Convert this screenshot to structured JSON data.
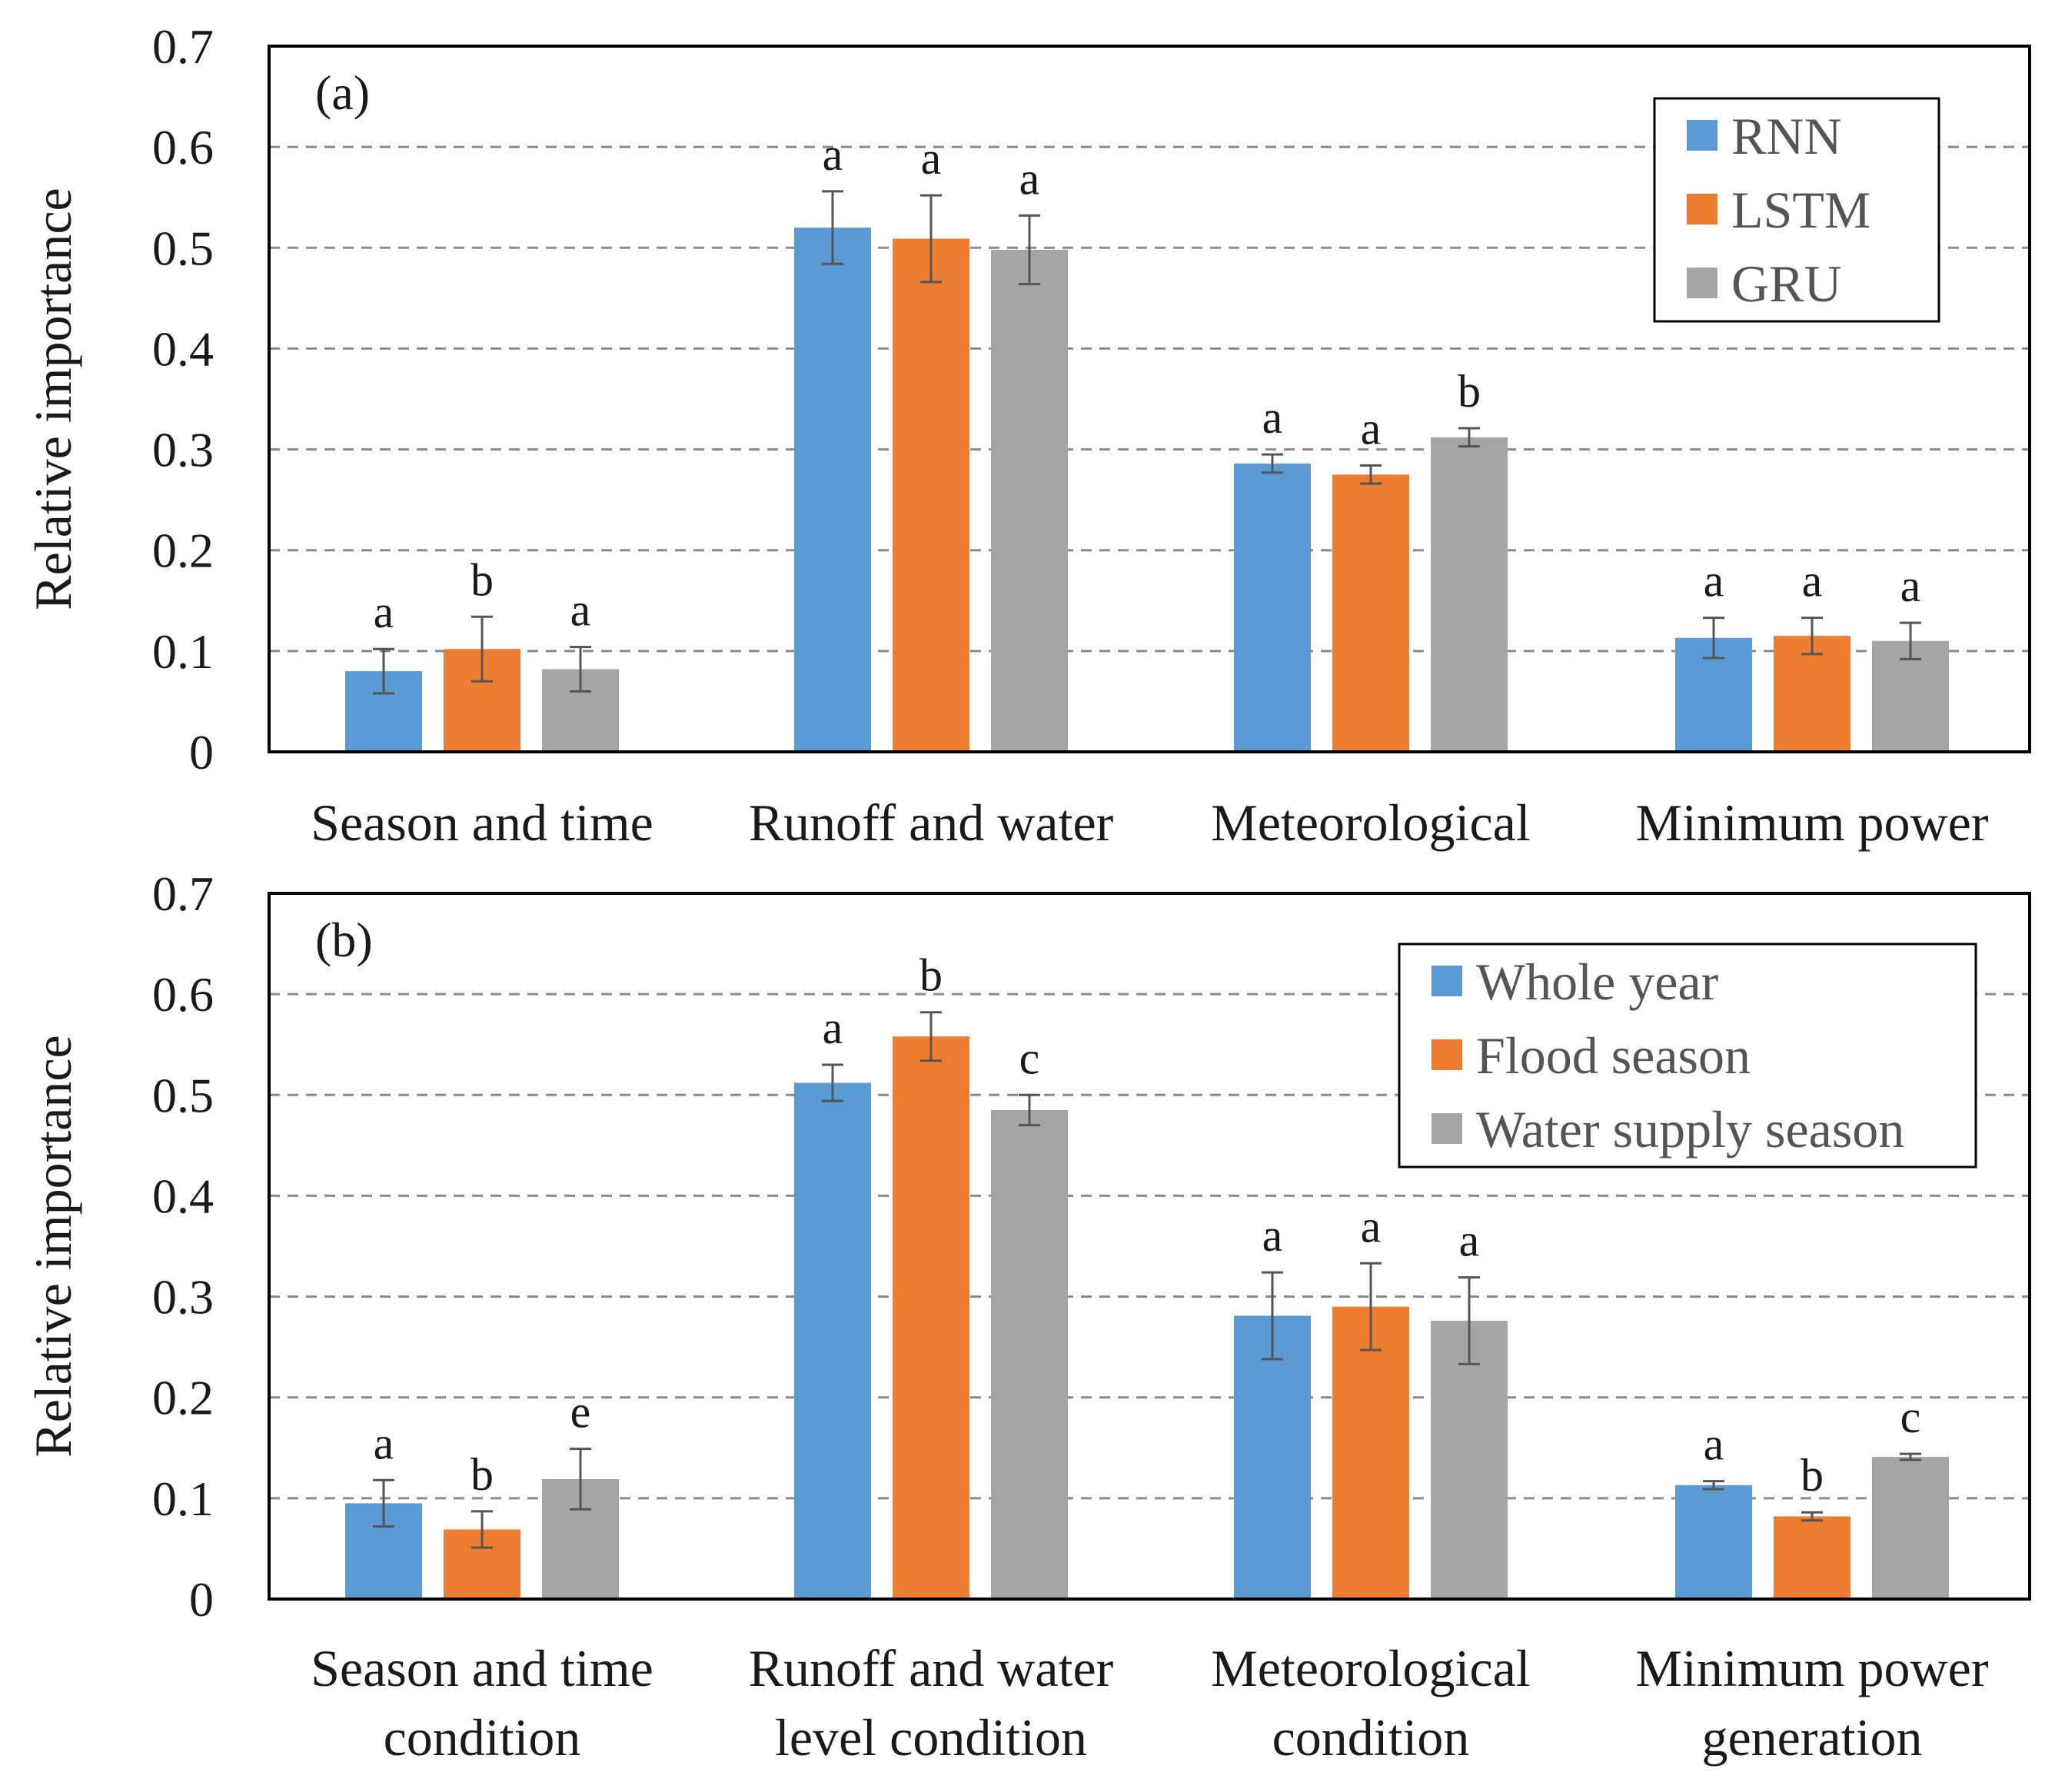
{
  "chart_data": [
    {
      "type": "bar",
      "panel_label": "(a)",
      "ylabel": "Relative importance",
      "ylim": [
        0,
        0.7
      ],
      "yticks": [
        "0",
        "0.1",
        "0.2",
        "0.3",
        "0.4",
        "0.5",
        "0.6",
        "0.7"
      ],
      "grid": "horizontal dashed",
      "legend_position": "top-right",
      "categories": [
        {
          "lines": [
            "Season and time"
          ]
        },
        {
          "lines": [
            "Runoff and water"
          ]
        },
        {
          "lines": [
            "Meteorological"
          ]
        },
        {
          "lines": [
            "Minimum power"
          ]
        }
      ],
      "series": [
        {
          "name": "RNN",
          "color": "#5b9bd5",
          "values": [
            0.08,
            0.52,
            0.286,
            0.113
          ],
          "errors": [
            0.022,
            0.036,
            0.009,
            0.02
          ],
          "letters": [
            "a",
            "a",
            "a",
            "a"
          ]
        },
        {
          "name": "LSTM",
          "color": "#ed7d31",
          "values": [
            0.102,
            0.509,
            0.275,
            0.115
          ],
          "errors": [
            0.032,
            0.043,
            0.009,
            0.018
          ],
          "letters": [
            "b",
            "a",
            "a",
            "a"
          ]
        },
        {
          "name": "GRU",
          "color": "#a5a5a5",
          "values": [
            0.082,
            0.498,
            0.312,
            0.11
          ],
          "errors": [
            0.022,
            0.034,
            0.009,
            0.018
          ],
          "letters": [
            "a",
            "a",
            "b",
            "a"
          ]
        }
      ]
    },
    {
      "type": "bar",
      "panel_label": "(b)",
      "ylabel": "Relative importance",
      "ylim": [
        0,
        0.7
      ],
      "yticks": [
        "0",
        "0.1",
        "0.2",
        "0.3",
        "0.4",
        "0.5",
        "0.6",
        "0.7"
      ],
      "grid": "horizontal dashed",
      "legend_position": "top-right",
      "categories": [
        {
          "lines": [
            "Season and time",
            "condition"
          ]
        },
        {
          "lines": [
            "Runoff and water",
            "level condition"
          ]
        },
        {
          "lines": [
            "Meteorological",
            "condition"
          ]
        },
        {
          "lines": [
            "Minimum power",
            "generation"
          ]
        }
      ],
      "series": [
        {
          "name": "Whole year",
          "color": "#5b9bd5",
          "values": [
            0.095,
            0.512,
            0.281,
            0.113
          ],
          "errors": [
            0.023,
            0.018,
            0.043,
            0.004
          ],
          "letters": [
            "a",
            "a",
            "a",
            "a"
          ]
        },
        {
          "name": "Flood season",
          "color": "#ed7d31",
          "values": [
            0.069,
            0.558,
            0.29,
            0.082
          ],
          "errors": [
            0.018,
            0.024,
            0.043,
            0.004
          ],
          "letters": [
            "b",
            "b",
            "a",
            "b"
          ]
        },
        {
          "name": "Water supply season",
          "color": "#a5a5a5",
          "values": [
            0.119,
            0.485,
            0.276,
            0.141
          ],
          "errors": [
            0.03,
            0.015,
            0.043,
            0.003
          ],
          "letters": [
            "e",
            "c",
            "a",
            "c"
          ]
        }
      ]
    }
  ]
}
